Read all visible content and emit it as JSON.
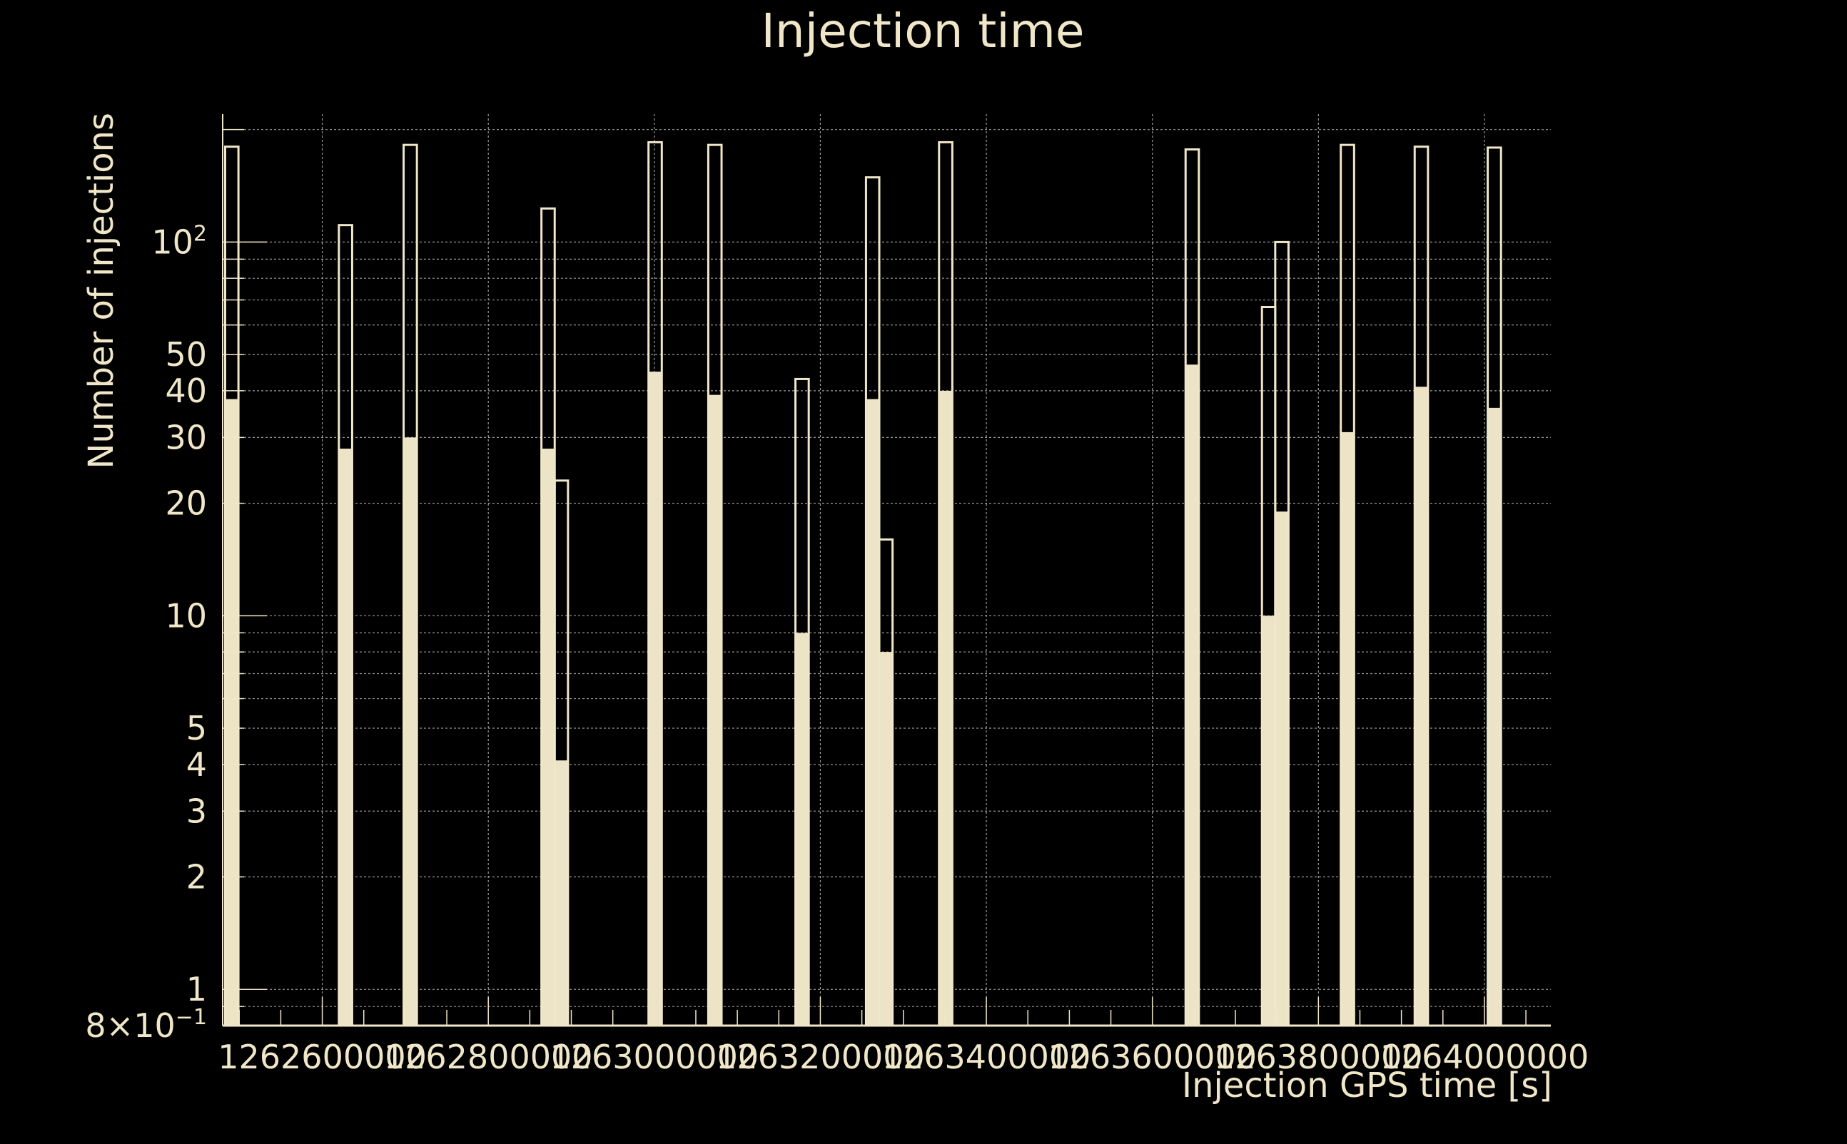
{
  "chart_data": {
    "type": "bar",
    "title": "Injection time",
    "xlabel": "Injection GPS time [s]",
    "ylabel": "Number of injections",
    "yscale": "log",
    "xlim": [
      1262480000,
      1264080000
    ],
    "ylim": [
      0.8,
      220
    ],
    "grid": true,
    "colors": {
      "background": "#000000",
      "foreground": "#F0E6C8",
      "fill": "#EDE3C6",
      "grid": "#9a9a9a"
    },
    "x_tick_labels": [
      {
        "value": 1262600000,
        "label": "1262600000"
      },
      {
        "value": 1262800000,
        "label": "1262800000"
      },
      {
        "value": 1263000000,
        "label": "1263000000"
      },
      {
        "value": 1263200000,
        "label": "1263200000"
      },
      {
        "value": 1263400000,
        "label": "1263400000"
      },
      {
        "value": 1263600000,
        "label": "1263600000"
      },
      {
        "value": 1263800000,
        "label": "1263800000"
      },
      {
        "value": 1264000000,
        "label": "1264000000"
      }
    ],
    "y_tick_labels": [
      {
        "value": 0.8,
        "label": "8×10",
        "sup": "−1"
      },
      {
        "value": 1,
        "label": "1"
      },
      {
        "value": 2,
        "label": "2"
      },
      {
        "value": 3,
        "label": "3"
      },
      {
        "value": 4,
        "label": "4"
      },
      {
        "value": 5,
        "label": "5"
      },
      {
        "value": 10,
        "label": "10"
      },
      {
        "value": 20,
        "label": "20"
      },
      {
        "value": 30,
        "label": "30"
      },
      {
        "value": 40,
        "label": "40"
      },
      {
        "value": 50,
        "label": "50"
      },
      {
        "value": 100,
        "label": "10",
        "sup": "2"
      }
    ],
    "bins": [
      {
        "x0": 1262483000,
        "x1": 1262499000,
        "total": 180,
        "filled": 38
      },
      {
        "x0": 1262620000,
        "x1": 1262636000,
        "total": 111,
        "filled": 28
      },
      {
        "x0": 1262698000,
        "x1": 1262714000,
        "total": 182,
        "filled": 30
      },
      {
        "x0": 1262864000,
        "x1": 1262880000,
        "total": 123,
        "filled": 28
      },
      {
        "x0": 1262880000,
        "x1": 1262896000,
        "total": 23,
        "filled": 4.1
      },
      {
        "x0": 1262993000,
        "x1": 1263009000,
        "total": 185,
        "filled": 45
      },
      {
        "x0": 1263065000,
        "x1": 1263081000,
        "total": 182,
        "filled": 39
      },
      {
        "x0": 1263170000,
        "x1": 1263186000,
        "total": 43,
        "filled": 9
      },
      {
        "x0": 1263255000,
        "x1": 1263271000,
        "total": 149,
        "filled": 38
      },
      {
        "x0": 1263271000,
        "x1": 1263287000,
        "total": 16,
        "filled": 8
      },
      {
        "x0": 1263343000,
        "x1": 1263359000,
        "total": 185,
        "filled": 40
      },
      {
        "x0": 1263640000,
        "x1": 1263656000,
        "total": 177,
        "filled": 47
      },
      {
        "x0": 1263732000,
        "x1": 1263748000,
        "total": 67,
        "filled": 10
      },
      {
        "x0": 1263748000,
        "x1": 1263764000,
        "total": 100,
        "filled": 19
      },
      {
        "x0": 1263827000,
        "x1": 1263843000,
        "total": 182,
        "filled": 31
      },
      {
        "x0": 1263916000,
        "x1": 1263932000,
        "total": 180,
        "filled": 41
      },
      {
        "x0": 1264004000,
        "x1": 1264020000,
        "total": 179,
        "filled": 36
      }
    ]
  }
}
